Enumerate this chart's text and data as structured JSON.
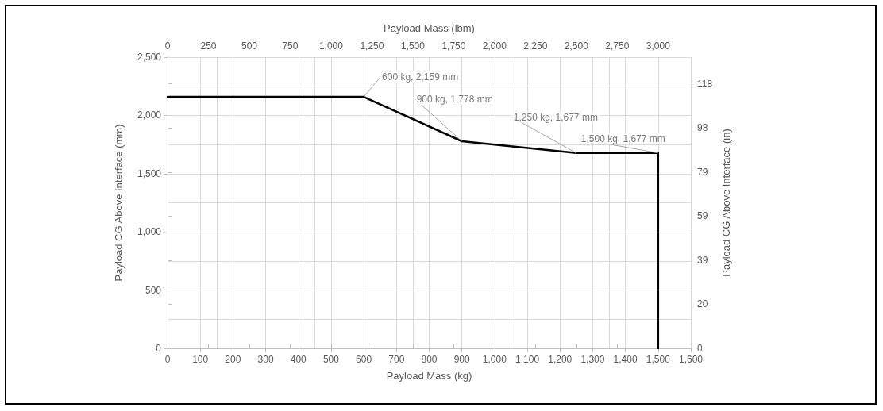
{
  "chart_data": {
    "type": "line",
    "xlabel": "Payload Mass (kg)",
    "ylabel": "Payload CG Above Interface (mm)",
    "x2label": "Payload Mass (lbm)",
    "y2label": "Payload CG Above Interface (in)",
    "xlim": [
      0,
      1600
    ],
    "xticks": [
      0,
      100,
      200,
      300,
      400,
      500,
      600,
      700,
      800,
      900,
      {
        "value": 1000,
        "label": "1,000"
      },
      {
        "value": 1100,
        "label": "1,100"
      },
      {
        "value": 1200,
        "label": "1,200"
      },
      {
        "value": 1300,
        "label": "1,300"
      },
      {
        "value": 1400,
        "label": "1,400"
      },
      {
        "value": 1500,
        "label": "1,500"
      },
      {
        "value": 1600,
        "label": "1,600"
      }
    ],
    "x2lim": [
      0,
      3200
    ],
    "x2ticks": [
      0,
      250,
      500,
      750,
      {
        "value": 1000,
        "label": "1,000"
      },
      {
        "value": 1250,
        "label": "1,250"
      },
      {
        "value": 1500,
        "label": "1,500"
      },
      {
        "value": 1750,
        "label": "1,750"
      },
      {
        "value": 2000,
        "label": "2,000"
      },
      {
        "value": 2250,
        "label": "2,250"
      },
      {
        "value": 2500,
        "label": "2,500"
      },
      {
        "value": 2750,
        "label": "2,750"
      },
      {
        "value": 3000,
        "label": "3,000"
      }
    ],
    "ylim": [
      0,
      2500
    ],
    "yticks": [
      0,
      500,
      {
        "value": 1000,
        "label": "1,000"
      },
      {
        "value": 1500,
        "label": "1,500"
      },
      {
        "value": 2000,
        "label": "2,000"
      },
      {
        "value": 2500,
        "label": "2,500"
      }
    ],
    "y2lim": [
      0,
      130
    ],
    "y2ticks": [
      0,
      {
        "value": 19.7,
        "label": "20"
      },
      {
        "value": 39.4,
        "label": "39"
      },
      {
        "value": 59.1,
        "label": "59"
      },
      {
        "value": 78.7,
        "label": "79"
      },
      {
        "value": 98.4,
        "label": "98"
      },
      {
        "value": 118.1,
        "label": "118"
      }
    ],
    "grid": true,
    "marker": "none",
    "line_style": "solid",
    "series": [
      {
        "color": "#000000",
        "x": [
          0,
          600,
          900,
          1250,
          1500,
          1500
        ],
        "values": [
          2159,
          2159,
          1778,
          1677,
          1677,
          0
        ]
      }
    ],
    "annotations": [
      {
        "text": "600 kg, 2,159 mm",
        "x": 600,
        "y": 2159
      },
      {
        "text": "900 kg, 1,778 mm",
        "x": 900,
        "y": 1778
      },
      {
        "text": "1,250 kg, 1,677 mm",
        "x": 1250,
        "y": 1677
      },
      {
        "text": "1,500 kg, 1,677 mm",
        "x": 1500,
        "y": 1677
      }
    ]
  }
}
